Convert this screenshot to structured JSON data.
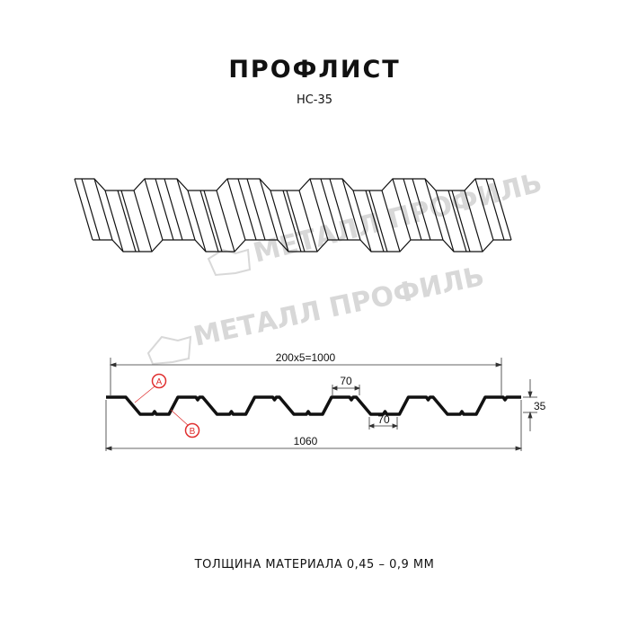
{
  "title": "ПРОФЛИСТ",
  "subtitle": "НС-35",
  "watermark": "МЕТАЛЛ ПРОФИЛЬ",
  "drawing": {
    "dim_pitch": "200x5=1000",
    "dim_top_width": "70",
    "dim_bottom_width": "70",
    "dim_height": "35",
    "dim_total_width": "1060",
    "label_a": "A",
    "label_b": "B",
    "line_color": "#111111",
    "label_color": "#e03030"
  },
  "footer": "ТОЛЩИНА МАТЕРИАЛА 0,45 – 0,9 ММ"
}
